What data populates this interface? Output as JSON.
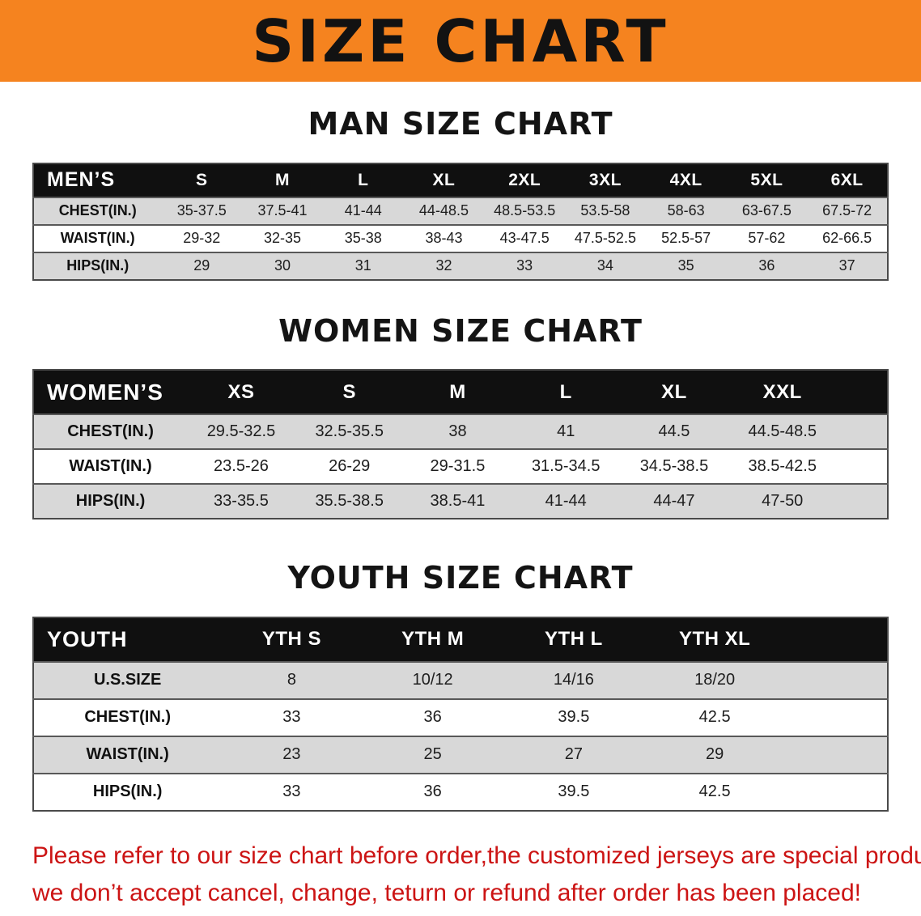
{
  "banner": {
    "title": "SIZE CHART"
  },
  "chart_data": [
    {
      "type": "table",
      "title": "MAN SIZE CHART",
      "header": [
        "MEN’S",
        "S",
        "M",
        "L",
        "XL",
        "2XL",
        "3XL",
        "4XL",
        "5XL",
        "6XL"
      ],
      "rows": [
        [
          "CHEST(IN.)",
          "35-37.5",
          "37.5-41",
          "41-44",
          "44-48.5",
          "48.5-53.5",
          "53.5-58",
          "58-63",
          "63-67.5",
          "67.5-72"
        ],
        [
          "WAIST(IN.)",
          "29-32",
          "32-35",
          "35-38",
          "38-43",
          "43-47.5",
          "47.5-52.5",
          "52.5-57",
          "57-62",
          "62-66.5"
        ],
        [
          "HIPS(IN.)",
          "29",
          "30",
          "31",
          "32",
          "33",
          "34",
          "35",
          "36",
          "37"
        ]
      ]
    },
    {
      "type": "table",
      "title": "WOMEN SIZE CHART",
      "header": [
        "WOMEN’S",
        "XS",
        "S",
        "M",
        "L",
        "XL",
        "XXL"
      ],
      "rows": [
        [
          "CHEST(IN.)",
          "29.5-32.5",
          "32.5-35.5",
          "38",
          "41",
          "44.5",
          "44.5-48.5"
        ],
        [
          "WAIST(IN.)",
          "23.5-26",
          "26-29",
          "29-31.5",
          "31.5-34.5",
          "34.5-38.5",
          "38.5-42.5"
        ],
        [
          "HIPS(IN.)",
          "33-35.5",
          "35.5-38.5",
          "38.5-41",
          "41-44",
          "44-47",
          "47-50"
        ]
      ]
    },
    {
      "type": "table",
      "title": "YOUTH SIZE CHART",
      "header": [
        "YOUTH",
        "YTH S",
        "YTH M",
        "YTH L",
        "YTH XL"
      ],
      "rows": [
        [
          "U.S.SIZE",
          "8",
          "10/12",
          "14/16",
          "18/20"
        ],
        [
          "CHEST(IN.)",
          "33",
          "36",
          "39.5",
          "42.5"
        ],
        [
          "WAIST(IN.)",
          "23",
          "25",
          "27",
          "29"
        ],
        [
          "HIPS(IN.)",
          "33",
          "36",
          "39.5",
          "42.5"
        ]
      ]
    }
  ],
  "disclaimer": {
    "line1": "Please refer to our size chart before order,the customized jerseys are special products,",
    "line2": "we don’t accept cancel, change, teturn or refund after order has been placed!"
  },
  "colors": {
    "banner_bg": "#F5831F",
    "table_header_bg": "#101010",
    "row_stripe": "#D8D8D8",
    "disclaimer_text": "#CC1414"
  }
}
